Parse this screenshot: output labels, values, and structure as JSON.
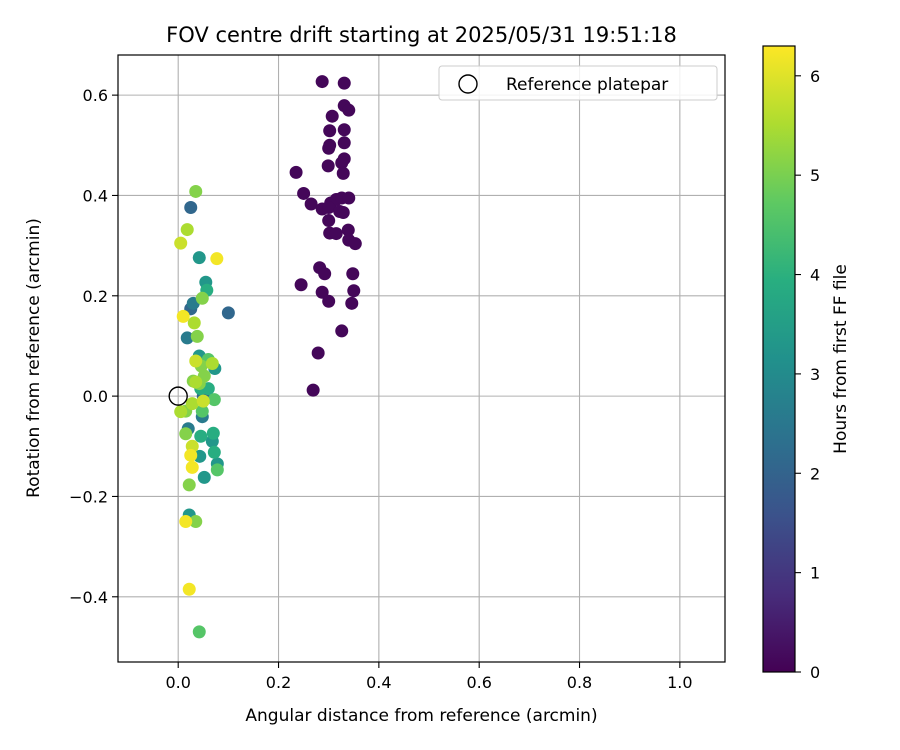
{
  "chart_data": {
    "type": "scatter",
    "title": "FOV centre drift starting at 2025/05/31 19:51:18",
    "xlabel": "Angular distance from reference (arcmin)",
    "ylabel": "Rotation from reference (arcmin)",
    "xlim": [
      -0.12,
      1.09
    ],
    "ylim": [
      -0.53,
      0.68
    ],
    "xticks": [
      0.0,
      0.2,
      0.4,
      0.6,
      0.8,
      1.0
    ],
    "xtick_labels": [
      "0.0",
      "0.2",
      "0.4",
      "0.6",
      "0.8",
      "1.0"
    ],
    "yticks": [
      -0.4,
      -0.2,
      0.0,
      0.2,
      0.4,
      0.6
    ],
    "ytick_labels": [
      "−0.4",
      "−0.2",
      "0.0",
      "0.2",
      "0.4",
      "0.6"
    ],
    "grid": true,
    "legend": {
      "position": "top-right",
      "entries": [
        "Reference platepar"
      ]
    },
    "reference_point": {
      "x": 0.0,
      "y": 0.0
    },
    "colorbar": {
      "label": "Hours from first FF file",
      "colormap": "viridis",
      "range": [
        0,
        6.3
      ],
      "ticks": [
        0,
        1,
        2,
        3,
        4,
        5,
        6
      ],
      "tick_labels": [
        "0",
        "1",
        "2",
        "3",
        "4",
        "5",
        "6"
      ]
    },
    "series": [
      {
        "color_value": 0.1,
        "points": [
          [
            0.287,
            0.627
          ],
          [
            0.331,
            0.624
          ],
          [
            0.331,
            0.579
          ],
          [
            0.34,
            0.57
          ],
          [
            0.307,
            0.558
          ],
          [
            0.302,
            0.529
          ],
          [
            0.331,
            0.531
          ],
          [
            0.302,
            0.5
          ],
          [
            0.3,
            0.494
          ],
          [
            0.331,
            0.505
          ],
          [
            0.331,
            0.473
          ],
          [
            0.326,
            0.465
          ],
          [
            0.299,
            0.459
          ],
          [
            0.329,
            0.444
          ],
          [
            0.235,
            0.446
          ],
          [
            0.25,
            0.404
          ],
          [
            0.265,
            0.383
          ],
          [
            0.287,
            0.373
          ],
          [
            0.304,
            0.385
          ],
          [
            0.315,
            0.392
          ],
          [
            0.326,
            0.395
          ],
          [
            0.34,
            0.395
          ],
          [
            0.3,
            0.376
          ],
          [
            0.322,
            0.368
          ],
          [
            0.329,
            0.366
          ],
          [
            0.3,
            0.35
          ],
          [
            0.302,
            0.325
          ],
          [
            0.315,
            0.324
          ],
          [
            0.339,
            0.331
          ],
          [
            0.34,
            0.311
          ],
          [
            0.353,
            0.304
          ],
          [
            0.282,
            0.256
          ],
          [
            0.292,
            0.244
          ],
          [
            0.348,
            0.244
          ],
          [
            0.245,
            0.222
          ],
          [
            0.287,
            0.207
          ],
          [
            0.35,
            0.21
          ],
          [
            0.3,
            0.189
          ],
          [
            0.346,
            0.185
          ],
          [
            0.326,
            0.13
          ],
          [
            0.279,
            0.086
          ],
          [
            0.269,
            0.012
          ]
        ]
      },
      {
        "color_value": 2.1,
        "points": [
          [
            0.025,
            0.376
          ],
          [
            0.1,
            0.166
          ],
          [
            0.025,
            0.174
          ],
          [
            0.05,
            0.0
          ]
        ]
      },
      {
        "color_value": 2.6,
        "points": [
          [
            0.03,
            0.185
          ],
          [
            0.018,
            0.116
          ],
          [
            0.02,
            -0.065
          ],
          [
            0.048,
            -0.041
          ]
        ]
      },
      {
        "color_value": 3.3,
        "points": [
          [
            0.055,
            0.227
          ],
          [
            0.042,
            0.276
          ],
          [
            0.042,
            0.08
          ],
          [
            0.073,
            0.055
          ],
          [
            0.068,
            -0.09
          ],
          [
            0.052,
            -0.162
          ],
          [
            0.022,
            -0.237
          ],
          [
            0.043,
            -0.12
          ],
          [
            0.078,
            -0.135
          ]
        ]
      },
      {
        "color_value": 3.9,
        "points": [
          [
            0.057,
            0.211
          ],
          [
            0.045,
            0.015
          ],
          [
            0.07,
            -0.074
          ],
          [
            0.045,
            -0.08
          ],
          [
            0.072,
            -0.112
          ],
          [
            0.06,
            0.015
          ]
        ]
      },
      {
        "color_value": 4.6,
        "points": [
          [
            0.06,
            0.073
          ],
          [
            0.072,
            -0.007
          ],
          [
            0.048,
            -0.03
          ],
          [
            0.078,
            -0.147
          ],
          [
            0.042,
            -0.47
          ]
        ]
      },
      {
        "color_value": 5.1,
        "points": [
          [
            0.035,
            0.408
          ],
          [
            0.048,
            0.195
          ],
          [
            0.038,
            0.119
          ],
          [
            0.03,
            0.03
          ],
          [
            0.052,
            0.04
          ],
          [
            0.046,
            0.06
          ],
          [
            0.042,
            0.025
          ],
          [
            0.015,
            -0.03
          ],
          [
            0.015,
            -0.075
          ],
          [
            0.022,
            -0.177
          ],
          [
            0.035,
            -0.25
          ]
        ]
      },
      {
        "color_value": 5.5,
        "points": [
          [
            0.018,
            0.332
          ],
          [
            0.035,
            0.028
          ],
          [
            0.005,
            -0.031
          ],
          [
            0.028,
            -0.015
          ],
          [
            0.032,
            0.146
          ],
          [
            0.068,
            0.065
          ]
        ]
      },
      {
        "color_value": 5.8,
        "points": [
          [
            0.005,
            0.305
          ],
          [
            0.05,
            -0.01
          ],
          [
            0.028,
            -0.1
          ],
          [
            0.035,
            0.07
          ]
        ]
      },
      {
        "color_value": 6.2,
        "points": [
          [
            0.077,
            0.274
          ],
          [
            0.01,
            0.159
          ],
          [
            0.025,
            -0.118
          ],
          [
            0.028,
            -0.142
          ],
          [
            0.015,
            -0.25
          ],
          [
            0.022,
            -0.385
          ]
        ]
      }
    ]
  }
}
